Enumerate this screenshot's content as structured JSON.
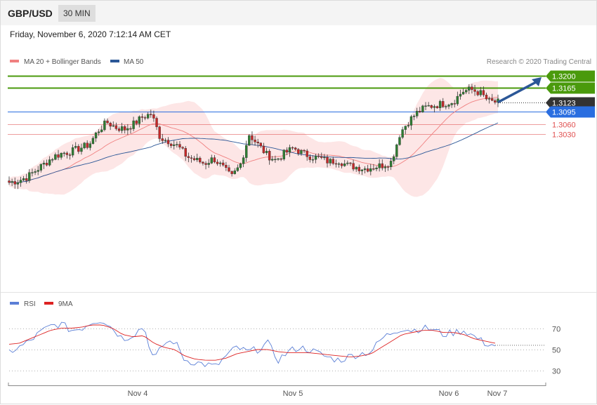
{
  "header": {
    "symbol": "GBP/USD",
    "timeframe": "30 MIN",
    "datetime": "Friday, November 6, 2020 7:12:14 AM CET"
  },
  "legend": {
    "ma20_label": "MA 20 + Bollinger Bands",
    "ma20_color": "#f08080",
    "ma50_label": "MA 50",
    "ma50_color": "#2b5797",
    "credit": "Research © 2020 Trading Central"
  },
  "levels": [
    {
      "value": "1.3200",
      "kind": "target",
      "color": "#4a9a0c"
    },
    {
      "value": "1.3165",
      "kind": "target",
      "color": "#4a9a0c"
    },
    {
      "value": "1.3123",
      "kind": "last",
      "color": "#333333"
    },
    {
      "value": "1.3095",
      "kind": "pivot",
      "color": "#2a6ee0"
    },
    {
      "value": "1.3060",
      "kind": "support",
      "color": "#e05050"
    },
    {
      "value": "1.3030",
      "kind": "support",
      "color": "#e05050"
    }
  ],
  "rsi_legend": {
    "rsi_label": "RSI",
    "rsi_color": "#5b7fd6",
    "ma_label": "9MA",
    "ma_color": "#dd2222"
  },
  "chart_data": {
    "type": "candlestick",
    "symbol": "GBP/USD",
    "interval": "30 MIN",
    "x_tick_labels": [
      "Nov 4",
      "Nov 5",
      "Nov 6",
      "Nov 7"
    ],
    "price_levels": [
      1.32,
      1.3165,
      1.3123,
      1.3095,
      1.306,
      1.303
    ],
    "close_path": [
      1.289,
      1.2895,
      1.2905,
      1.2925,
      1.2945,
      1.2965,
      1.2975,
      1.298,
      1.299,
      1.3,
      1.304,
      1.3065,
      1.305,
      1.3045,
      1.306,
      1.308,
      1.309,
      1.302,
      1.301,
      1.2995,
      1.2965,
      1.2955,
      1.2945,
      1.296,
      1.2935,
      1.2905,
      1.294,
      1.303,
      1.3,
      1.297,
      1.2955,
      1.2975,
      1.299,
      1.2975,
      1.2965,
      1.296,
      1.295,
      1.2955,
      1.294,
      1.2935,
      1.293,
      1.2935,
      1.294,
      1.295,
      1.3035,
      1.307,
      1.3095,
      1.311,
      1.3115,
      1.312,
      1.3125,
      1.3155,
      1.316,
      1.315,
      1.3125,
      1.3123
    ],
    "direction_arrow": {
      "from": 1.3123,
      "to": 1.32
    },
    "rsi": {
      "levels": [
        70,
        50,
        30
      ],
      "rsi_path": [
        48,
        52,
        58,
        66,
        72,
        74,
        68,
        70,
        76,
        78,
        70,
        60,
        64,
        72,
        40,
        56,
        58,
        40,
        38,
        36,
        34,
        44,
        52,
        48,
        50,
        56,
        40,
        48,
        52,
        50,
        46,
        42,
        40,
        44,
        46,
        48,
        60,
        66,
        70,
        68,
        70,
        69,
        64,
        66,
        68,
        62,
        56,
        54
      ],
      "ma_path": [
        55,
        56,
        60,
        64,
        68,
        70,
        70,
        71,
        73,
        73,
        70,
        64,
        62,
        63,
        56,
        52,
        50,
        44,
        41,
        40,
        40,
        42,
        46,
        48,
        50,
        50,
        48,
        47,
        47,
        47,
        46,
        45,
        44,
        43,
        44,
        46,
        52,
        58,
        64,
        66,
        68,
        68,
        66,
        66,
        64,
        60,
        58,
        56
      ]
    }
  },
  "xaxis": {
    "ticks": [
      "Nov 4",
      "Nov 5",
      "Nov 6",
      "Nov 7"
    ]
  }
}
